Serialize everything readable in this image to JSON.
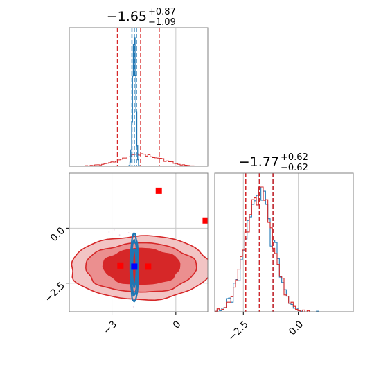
{
  "colors": {
    "red": "#d62728",
    "blue": "#1f77b4",
    "grid": "#c8c8c8",
    "frame": "#808080"
  },
  "chart_data": [
    {
      "type": "histogram",
      "panel": "top-left",
      "title": {
        "main": "−1.65",
        "upper": "+0.87",
        "lower": "−1.09"
      },
      "xlim": [
        -5,
        1.5
      ],
      "grid": true,
      "series": [
        {
          "name": "",
          "color": "#d62728",
          "quantiles": [
            -2.74,
            -1.65,
            -0.78
          ]
        },
        {
          "name": "",
          "color": "#1f77b4",
          "quantiles": [
            -2.06,
            -1.95,
            -1.85
          ]
        }
      ]
    },
    {
      "type": "scatter",
      "panel": "bottom-left",
      "xlim": [
        -5,
        1.5
      ],
      "ylim": [
        -3.8,
        2.5
      ],
      "xticks": [
        {
          "v": -3,
          "label": "−3"
        },
        {
          "v": 0,
          "label": "0"
        }
      ],
      "yticks": [
        {
          "v": 0,
          "label": "0.0"
        },
        {
          "v": -2.5,
          "label": "−2.5"
        }
      ],
      "grid": true,
      "red_points": [
        [
          -0.8,
          1.7
        ],
        [
          -2.6,
          -1.7
        ],
        [
          -1.3,
          -1.75
        ],
        [
          1.4,
          0.35
        ]
      ],
      "blue_point": [
        -1.95,
        -1.75
      ]
    },
    {
      "type": "histogram",
      "panel": "bottom-right",
      "title": {
        "main": "−1.77",
        "upper": "+0.62",
        "lower": "−0.62"
      },
      "xlim": [
        -3.8,
        2.5
      ],
      "xticks": [
        {
          "v": -2.5,
          "label": "−2.5"
        },
        {
          "v": 0,
          "label": "0.0"
        }
      ],
      "grid": true,
      "series": [
        {
          "name": "",
          "color": "#d62728",
          "quantiles": [
            -2.39,
            -1.77,
            -1.15
          ]
        },
        {
          "name": "",
          "color": "#1f77b4",
          "quantiles": [
            -2.39,
            -1.77,
            -1.15
          ]
        }
      ]
    }
  ]
}
